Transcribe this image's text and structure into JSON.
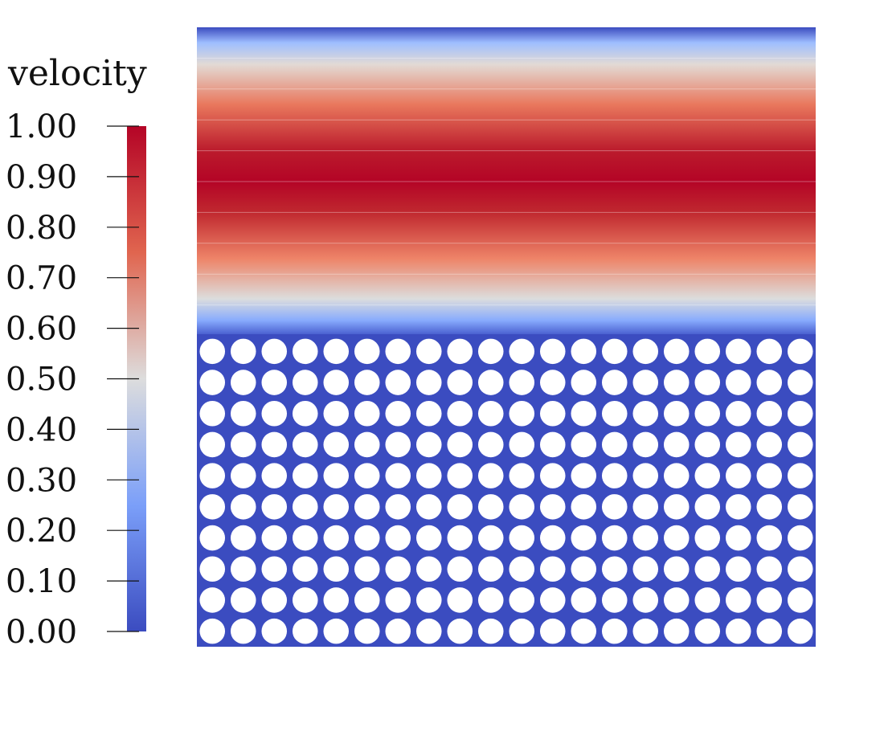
{
  "colorbar": {
    "title": "velocity",
    "tick_labels": [
      "1.00",
      "0.90",
      "0.80",
      "0.70",
      "0.60",
      "0.50",
      "0.40",
      "0.30",
      "0.20",
      "0.10",
      "0.00"
    ],
    "range": [
      0.0,
      1.0
    ],
    "colormap": "cool-to-warm",
    "colors": {
      "low": "#3b4cc0",
      "mid": "#dddddd",
      "high": "#b40426"
    }
  },
  "field": {
    "variable": "velocity",
    "free_channel": {
      "profile": "parabolic",
      "max_value": 1.0,
      "wall_value": 0.0
    },
    "porous_bed": {
      "value": 0.0,
      "obstacle_rows": 10,
      "obstacle_columns": 20,
      "obstacle_shape": "circle",
      "obstacle_color": "#ffffff"
    }
  }
}
